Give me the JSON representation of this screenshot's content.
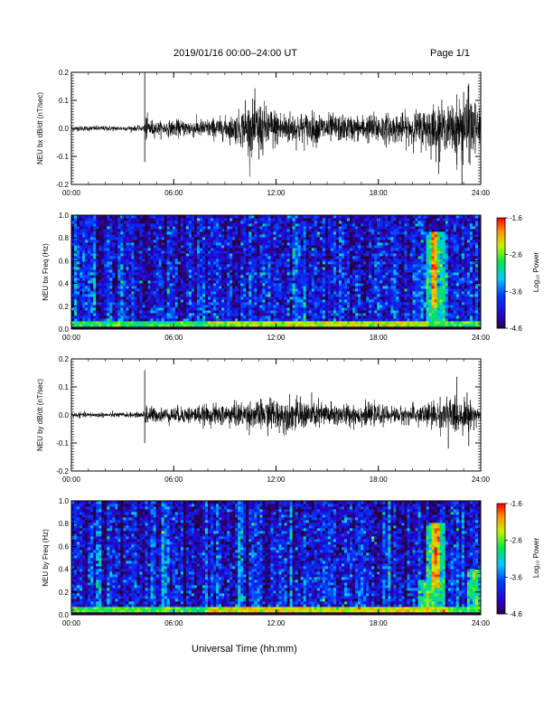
{
  "header": {
    "title": "2019/01/16  00:00–24:00 UT",
    "page": "Page 1/1"
  },
  "x_axis_title": "Universal Time (hh:mm)",
  "chart_data": [
    {
      "type": "line",
      "ylabel": "NEU bx dB/dt (nT/sec)",
      "xlim": [
        0,
        24
      ],
      "ylim": [
        -0.2,
        0.2
      ],
      "xticks": [
        "00:00",
        "06:00",
        "12:00",
        "18:00",
        "24:00"
      ],
      "yticks": [
        "-0.2",
        "-0.1",
        "0.0",
        "0.1",
        "0.2"
      ],
      "envelope": {
        "x": [
          0,
          4.2,
          4.4,
          4.6,
          5.0,
          6,
          8,
          9.5,
          10,
          10.5,
          11,
          11.5,
          12,
          13,
          14,
          15,
          16,
          17,
          18,
          19,
          20,
          21,
          21.5,
          22,
          22.5,
          23,
          23.5,
          24
        ],
        "amp": [
          0.008,
          0.008,
          0.04,
          0.03,
          0.02,
          0.025,
          0.03,
          0.04,
          0.06,
          0.08,
          0.085,
          0.07,
          0.06,
          0.05,
          0.05,
          0.045,
          0.04,
          0.04,
          0.05,
          0.045,
          0.05,
          0.07,
          0.08,
          0.06,
          0.09,
          0.1,
          0.1,
          0.05
        ]
      },
      "spikes": [
        {
          "x": 4.3,
          "y": 0.2
        },
        {
          "x": 4.3,
          "y": -0.12
        },
        {
          "x": 10.2,
          "y": 0.1
        },
        {
          "x": 11.0,
          "y": -0.11
        },
        {
          "x": 21.6,
          "y": -0.12
        },
        {
          "x": 22.6,
          "y": -0.13
        },
        {
          "x": 22.9,
          "y": -0.21
        },
        {
          "x": 23.3,
          "y": 0.16
        },
        {
          "x": 23.0,
          "y": 0.13
        }
      ]
    },
    {
      "type": "heatmap",
      "ylabel": "NEU bx Freq (Hz)",
      "xlim": [
        0,
        24
      ],
      "ylim": [
        0.0,
        1.0
      ],
      "xticks": [
        "00:00",
        "06:00",
        "12:00",
        "18:00",
        "24:00"
      ],
      "yticks": [
        "0.0",
        "0.2",
        "0.4",
        "0.6",
        "0.8",
        "1.0"
      ],
      "colorbar": {
        "label": "Log₁₀ Power",
        "ticks": [
          "-1.6",
          "-2.6",
          "-3.6",
          "-4.6"
        ],
        "range": [
          -4.6,
          -1.6
        ]
      },
      "features": [
        {
          "kind": "low-freq-band",
          "f_max": 0.05,
          "x_range": [
            8,
            21
          ],
          "power": -2.4
        },
        {
          "kind": "burst",
          "x_range": [
            21.2,
            21.5
          ],
          "f_range": [
            0.2,
            0.85
          ],
          "power": -2.0
        }
      ]
    },
    {
      "type": "line",
      "ylabel": "NEU by dB/dt (nT/sec)",
      "xlim": [
        0,
        24
      ],
      "ylim": [
        -0.2,
        0.2
      ],
      "xticks": [
        "00:00",
        "06:00",
        "12:00",
        "18:00",
        "24:00"
      ],
      "yticks": [
        "-0.2",
        "-0.1",
        "0.0",
        "0.1",
        "0.2"
      ],
      "envelope": {
        "x": [
          0,
          4.2,
          4.4,
          4.6,
          5.0,
          6,
          8,
          10,
          11,
          12,
          13,
          14,
          15,
          16,
          17,
          18,
          19,
          20,
          21,
          22,
          22.5,
          23,
          23.5,
          24
        ],
        "amp": [
          0.008,
          0.008,
          0.04,
          0.03,
          0.02,
          0.025,
          0.03,
          0.04,
          0.045,
          0.05,
          0.05,
          0.045,
          0.04,
          0.035,
          0.035,
          0.03,
          0.025,
          0.03,
          0.04,
          0.05,
          0.06,
          0.05,
          0.04,
          0.02
        ]
      },
      "spikes": [
        {
          "x": 4.3,
          "y": 0.16
        },
        {
          "x": 4.3,
          "y": -0.1
        },
        {
          "x": 11.7,
          "y": 0.06
        },
        {
          "x": 22.1,
          "y": -0.12
        },
        {
          "x": 23.3,
          "y": -0.11
        },
        {
          "x": 23.2,
          "y": 0.08
        },
        {
          "x": 22.5,
          "y": 0.07
        }
      ]
    },
    {
      "type": "heatmap",
      "ylabel": "NEU by Freq (Hz)",
      "xlim": [
        0,
        24
      ],
      "ylim": [
        0.0,
        1.0
      ],
      "xticks": [
        "00:00",
        "06:00",
        "12:00",
        "18:00",
        "24:00"
      ],
      "yticks": [
        "0.0",
        "0.2",
        "0.4",
        "0.6",
        "0.8",
        "1.0"
      ],
      "colorbar": {
        "label": "Log₁₀ Power",
        "ticks": [
          "-1.6",
          "-2.6",
          "-3.6",
          "-4.6"
        ],
        "range": [
          -4.6,
          -1.6
        ]
      },
      "features": [
        {
          "kind": "low-freq-band",
          "f_max": 0.05,
          "x_range": [
            8,
            22
          ],
          "power": -2.3
        },
        {
          "kind": "burst",
          "x_range": [
            21.2,
            21.6
          ],
          "f_range": [
            0.25,
            0.8
          ],
          "power": -2.1
        },
        {
          "kind": "burst",
          "x_range": [
            20.6,
            21.0
          ],
          "f_range": [
            0.05,
            0.3
          ],
          "power": -2.7
        },
        {
          "kind": "burst",
          "x_range": [
            23.5,
            23.8
          ],
          "f_range": [
            0.05,
            0.4
          ],
          "power": -2.6
        }
      ]
    }
  ]
}
